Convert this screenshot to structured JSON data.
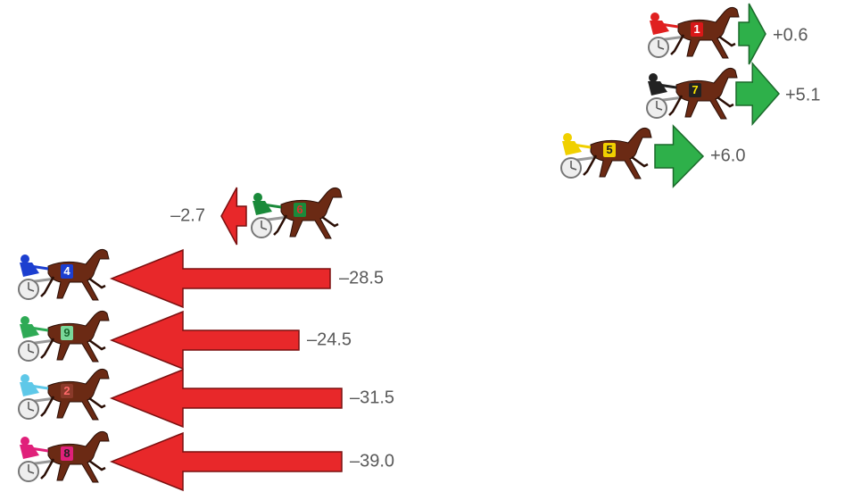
{
  "horses": [
    {
      "number": "1",
      "change": "+0.6"
    },
    {
      "number": "7",
      "change": "+5.1"
    },
    {
      "number": "5",
      "change": "+6.0"
    },
    {
      "number": "6",
      "change": "–2.7"
    },
    {
      "number": "4",
      "change": "–28.5"
    },
    {
      "number": "9",
      "change": "–24.5"
    },
    {
      "number": "2",
      "change": "–31.5"
    },
    {
      "number": "8",
      "change": "–39.0"
    }
  ]
}
